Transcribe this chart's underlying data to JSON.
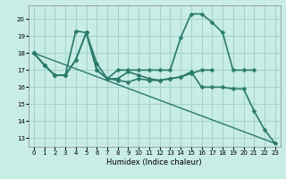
{
  "xlabel": "Humidex (Indice chaleur)",
  "xlim": [
    -0.5,
    23.5
  ],
  "ylim": [
    12.5,
    20.8
  ],
  "yticks": [
    13,
    14,
    15,
    16,
    17,
    18,
    19,
    20
  ],
  "xticks": [
    0,
    1,
    2,
    3,
    4,
    5,
    6,
    7,
    8,
    9,
    10,
    11,
    12,
    13,
    14,
    15,
    16,
    17,
    18,
    19,
    20,
    21,
    22,
    23
  ],
  "bg_color": "#c8ece6",
  "grid_color": "#a0d4cc",
  "line_color": "#2a7a6a",
  "lines": [
    {
      "x": [
        0,
        1,
        2,
        3,
        4,
        5,
        6,
        7,
        8,
        9,
        10,
        11,
        12,
        13,
        14,
        15,
        16,
        17,
        18,
        19,
        20,
        21,
        22,
        23
      ],
      "y": [
        18.0,
        17.3,
        16.7,
        16.7,
        17.6,
        19.2,
        17.4,
        16.5,
        16.4,
        16.3,
        16.5,
        16.4,
        16.4,
        16.5,
        16.6,
        16.9,
        16.0,
        16.0,
        16.0,
        15.9,
        15.9,
        14.6,
        13.5,
        12.7
      ],
      "marker": "D",
      "markersize": 2.5,
      "linewidth": 1.2
    },
    {
      "x": [
        0,
        1,
        2,
        3,
        4,
        5,
        6,
        7,
        8,
        9,
        10,
        11,
        12,
        13,
        14,
        15,
        16,
        17,
        18,
        19,
        20,
        21
      ],
      "y": [
        18.0,
        17.3,
        16.7,
        16.7,
        19.3,
        19.2,
        17.0,
        16.5,
        17.0,
        17.0,
        17.0,
        17.0,
        17.0,
        17.0,
        18.9,
        20.3,
        20.3,
        19.8,
        19.2,
        17.0,
        17.0,
        17.0
      ],
      "marker": "D",
      "markersize": 2.5,
      "linewidth": 1.2
    },
    {
      "x": [
        0,
        1,
        2,
        3,
        4,
        5,
        6,
        7,
        8,
        9,
        10,
        11,
        12,
        13,
        14,
        15,
        16,
        17
      ],
      "y": [
        18.0,
        17.3,
        16.7,
        16.7,
        17.6,
        19.2,
        17.0,
        16.5,
        16.5,
        16.9,
        16.7,
        16.5,
        16.4,
        16.5,
        16.6,
        16.8,
        17.0,
        17.0
      ],
      "marker": "D",
      "markersize": 2.5,
      "linewidth": 1.2
    },
    {
      "x": [
        0,
        23
      ],
      "y": [
        18.0,
        12.7
      ],
      "marker": null,
      "markersize": 0,
      "linewidth": 1.0
    }
  ]
}
